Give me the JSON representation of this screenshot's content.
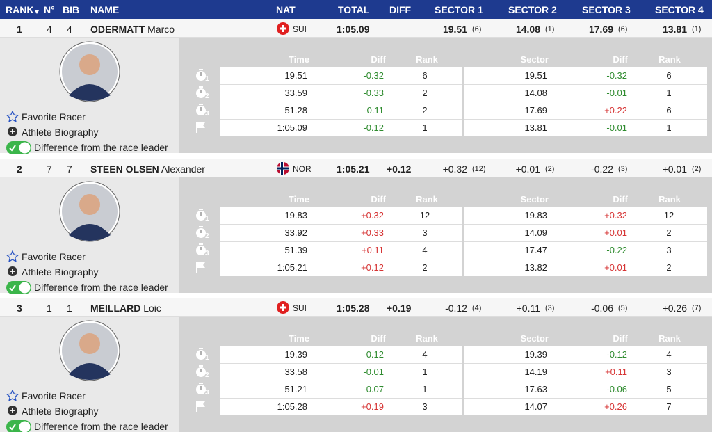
{
  "header": [
    "RANK",
    "N°",
    "BIB",
    "NAME",
    "NAT",
    "TOTAL",
    "DIFF",
    "SECTOR 1",
    "SECTOR 2",
    "SECTOR 3",
    "SECTOR 4"
  ],
  "actions": [
    "Favorite Racer",
    "Athlete Biography",
    "Difference from the race leader"
  ],
  "detail_header": [
    "Time",
    "Diff",
    "Rank",
    "Sector",
    "Diff",
    "Rank"
  ],
  "split_numbers": [
    "1",
    "2",
    "3"
  ],
  "racers": [
    {
      "rank": "1",
      "no": "4",
      "bib": "4",
      "last": "ODERMATT",
      "first": "Marco",
      "nat": "SUI",
      "total": "1:05.09",
      "sectors": [
        {
          "value": "19.51",
          "rank": "(6)"
        },
        {
          "value": "14.08",
          "rank": "(1)"
        },
        {
          "value": "17.69",
          "rank": "(6)"
        },
        {
          "value": "13.81",
          "rank": "(1)"
        }
      ],
      "splits": [
        [
          "19.51",
          "-0.32",
          "6",
          "19.51",
          "-0.32",
          "6"
        ],
        [
          "33.59",
          "-0.33",
          "2",
          "14.08",
          "-0.01",
          "1"
        ],
        [
          "51.28",
          "-0.11",
          "2",
          "17.69",
          "+0.22",
          "6"
        ],
        [
          "1:05.09",
          "-0.12",
          "1",
          "13.81",
          "-0.01",
          "1"
        ]
      ]
    },
    {
      "rank": "2",
      "no": "7",
      "bib": "7",
      "last": "STEEN OLSEN",
      "first": "Alexander",
      "nat": "NOR",
      "total": "1:05.21",
      "diff": "+0.12",
      "sectors": [
        {
          "value": "+0.32",
          "rank": "(12)"
        },
        {
          "value": "+0.01",
          "rank": "(2)"
        },
        {
          "value": "-0.22",
          "rank": "(3)"
        },
        {
          "value": "+0.01",
          "rank": "(2)"
        }
      ],
      "splits": [
        [
          "19.83",
          "+0.32",
          "12",
          "19.83",
          "+0.32",
          "12"
        ],
        [
          "33.92",
          "+0.33",
          "3",
          "14.09",
          "+0.01",
          "2"
        ],
        [
          "51.39",
          "+0.11",
          "4",
          "17.47",
          "-0.22",
          "3"
        ],
        [
          "1:05.21",
          "+0.12",
          "2",
          "13.82",
          "+0.01",
          "2"
        ]
      ]
    },
    {
      "rank": "3",
      "no": "1",
      "bib": "1",
      "last": "MEILLARD",
      "first": "Loic",
      "nat": "SUI",
      "total": "1:05.28",
      "diff": "+0.19",
      "sectors": [
        {
          "value": "-0.12",
          "rank": "(4)"
        },
        {
          "value": "+0.11",
          "rank": "(3)"
        },
        {
          "value": "-0.06",
          "rank": "(5)"
        },
        {
          "value": "+0.26",
          "rank": "(7)"
        }
      ],
      "splits": [
        [
          "19.39",
          "-0.12",
          "4",
          "19.39",
          "-0.12",
          "4"
        ],
        [
          "33.58",
          "-0.01",
          "1",
          "14.19",
          "+0.11",
          "3"
        ],
        [
          "51.21",
          "-0.07",
          "1",
          "17.63",
          "-0.06",
          "5"
        ],
        [
          "1:05.28",
          "+0.19",
          "3",
          "14.07",
          "+0.26",
          "7"
        ]
      ]
    }
  ]
}
